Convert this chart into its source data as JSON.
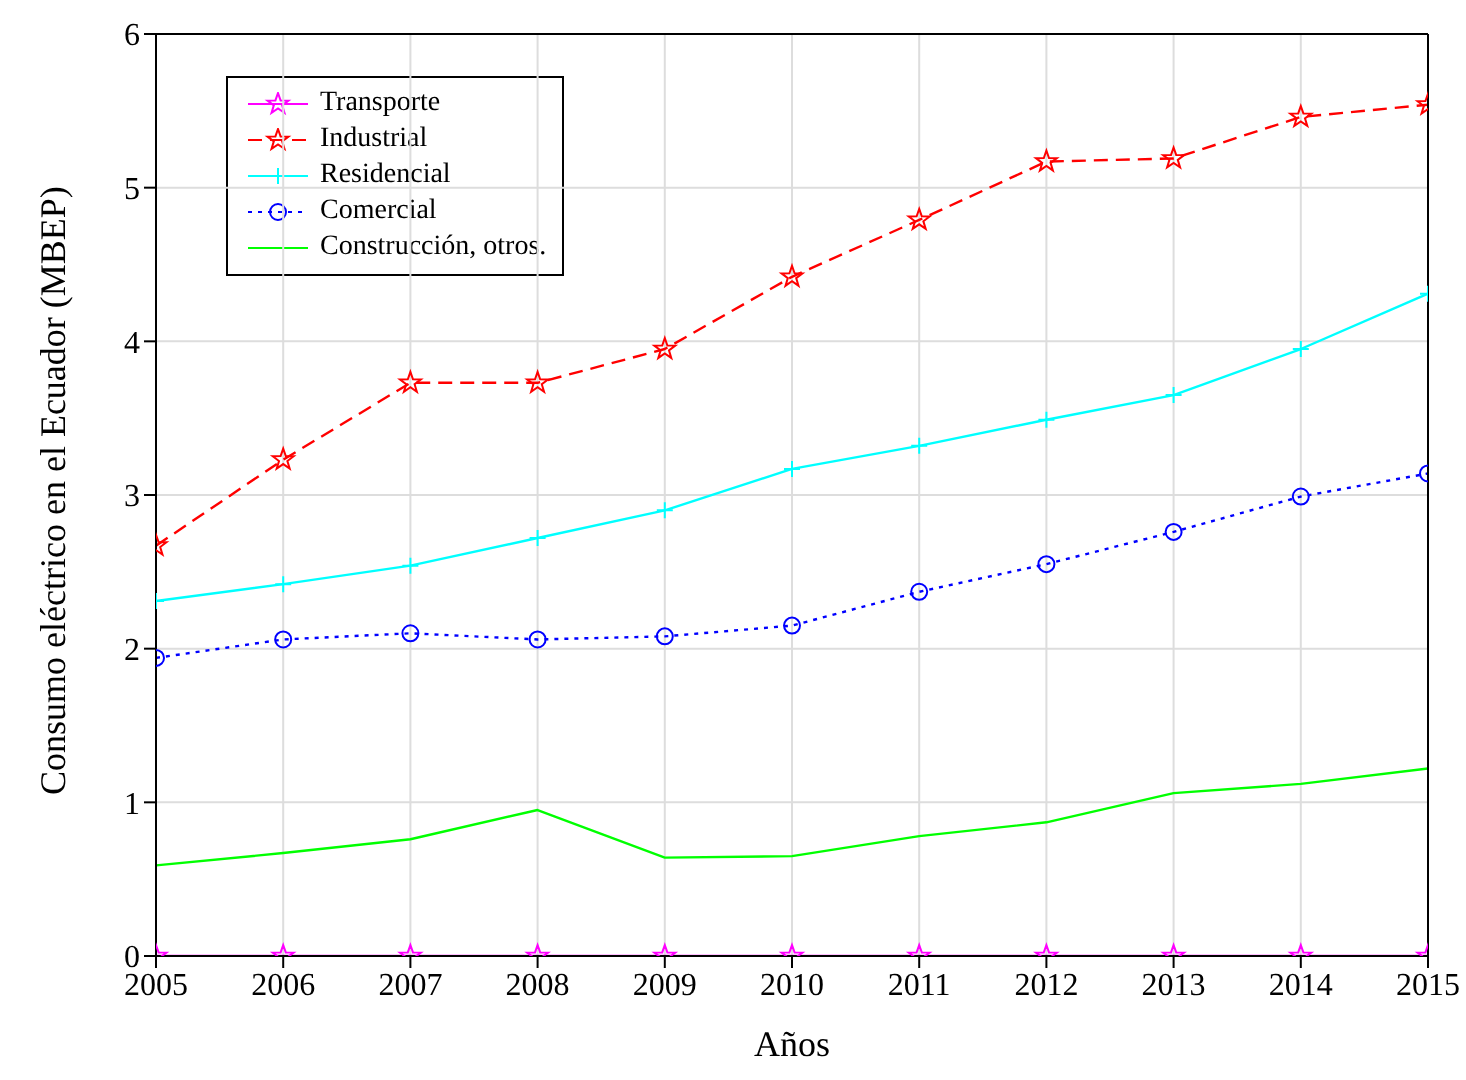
{
  "chart_data": {
    "type": "line",
    "xlabel": "Años",
    "ylabel": "Consumo eléctrico en el Ecuador (MBEP)",
    "x": [
      2005,
      2006,
      2007,
      2008,
      2009,
      2010,
      2011,
      2012,
      2013,
      2014,
      2015
    ],
    "xlim": [
      2005,
      2015
    ],
    "xticks": [
      2005,
      2006,
      2007,
      2008,
      2009,
      2010,
      2011,
      2012,
      2013,
      2014,
      2015
    ],
    "ylim": [
      0,
      6
    ],
    "yticks": [
      0,
      1,
      2,
      3,
      4,
      5,
      6
    ],
    "grid": true,
    "legend": "top left",
    "series": [
      {
        "name": "Transporte",
        "color": "#ff00ff",
        "marker": "star",
        "line_style": "solid",
        "values": [
          0,
          0,
          0,
          0,
          0,
          0,
          0,
          0,
          0,
          0,
          0
        ]
      },
      {
        "name": "Industrial",
        "color": "#ff0000",
        "marker": "star",
        "line_style": "dashed",
        "values": [
          2.67,
          3.23,
          3.73,
          3.73,
          3.95,
          4.42,
          4.79,
          5.17,
          5.19,
          5.46,
          5.54
        ]
      },
      {
        "name": "Residencial",
        "color": "#00ffff",
        "marker": "cross",
        "line_style": "solid",
        "values": [
          2.31,
          2.42,
          2.54,
          2.72,
          2.9,
          3.17,
          3.32,
          3.49,
          3.65,
          3.95,
          4.31
        ]
      },
      {
        "name": "Comercial",
        "color": "#0000ff",
        "marker": "circle",
        "line_style": "dotted",
        "values": [
          1.94,
          2.06,
          2.1,
          2.06,
          2.08,
          2.15,
          2.37,
          2.55,
          2.76,
          2.99,
          3.14
        ]
      },
      {
        "name": "Construcción, otros.",
        "color": "#00ff00",
        "marker": "none",
        "line_style": "solid",
        "values": [
          0.59,
          0.67,
          0.76,
          0.95,
          0.64,
          0.65,
          0.78,
          0.87,
          1.06,
          1.12,
          1.22
        ]
      }
    ]
  }
}
